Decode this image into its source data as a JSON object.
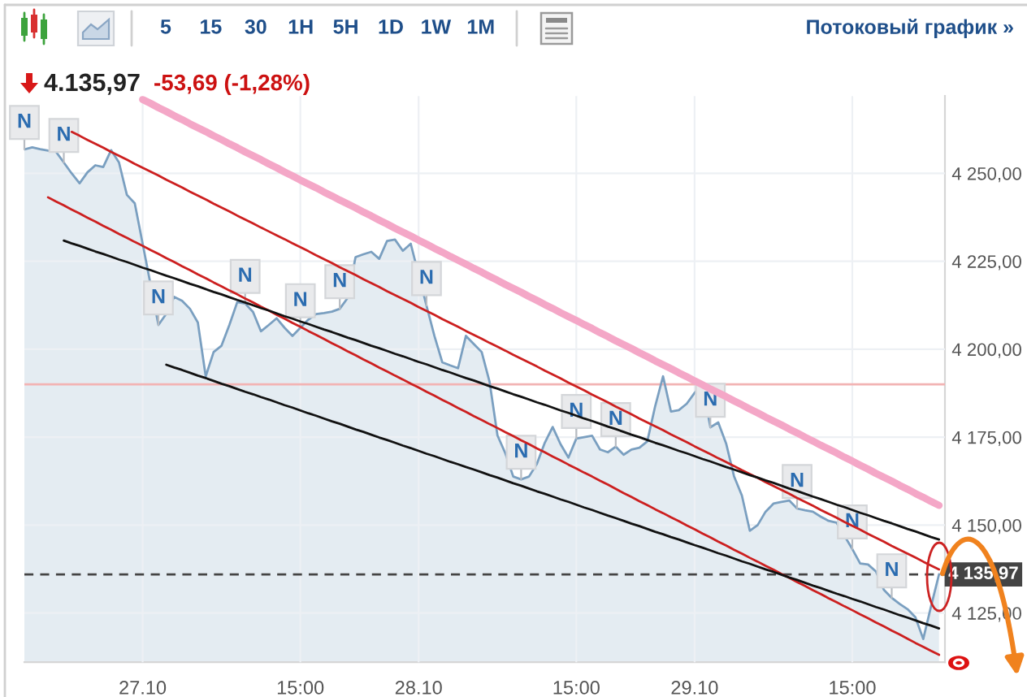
{
  "chart_data": {
    "type": "area",
    "title": "4.135,97",
    "subtitle": "-53,69 (-1,28%)",
    "categories": [
      null,
      null,
      null,
      null,
      null,
      null,
      null,
      null,
      null,
      null,
      null,
      null,
      null,
      null,
      null,
      "27.10",
      null,
      null,
      null,
      null,
      null,
      null,
      null,
      null,
      null,
      null,
      null,
      null,
      null,
      null,
      null,
      null,
      null,
      null,
      null,
      "15:00",
      null,
      null,
      null,
      null,
      null,
      null,
      null,
      null,
      null,
      null,
      null,
      null,
      null,
      null,
      "28.10",
      null,
      null,
      null,
      null,
      null,
      null,
      null,
      null,
      null,
      null,
      null,
      null,
      null,
      null,
      null,
      null,
      null,
      null,
      null,
      "15:00",
      null,
      null,
      null,
      null,
      null,
      null,
      null,
      null,
      null,
      null,
      null,
      null,
      null,
      null,
      "29.10",
      null,
      null,
      null,
      null,
      null,
      null,
      null,
      null,
      null,
      null,
      null,
      null,
      null,
      null,
      null,
      null,
      null,
      null,
      null,
      "15:00",
      null,
      null,
      null,
      null,
      null,
      null,
      null,
      null,
      null,
      null,
      null
    ],
    "series": [
      {
        "color": "#7a9fc0",
        "values": [
          4256.8,
          4257.4,
          4256.9,
          4256.5,
          4256.2,
          4253.1,
          4250.0,
          4247.2,
          4250.3,
          4252.3,
          4251.8,
          4256.6,
          4253.1,
          4243.9,
          4241.5,
          4230.0,
          null,
          4206.9,
          4210.1,
          4214.9,
          4213.8,
          4211.5,
          4207.6,
          4192.3,
          4199.2,
          4201.0,
          4206.9,
          4213.4,
          4213.0,
          4210.6,
          4205.1,
          4206.9,
          4208.8,
          4206.1,
          4203.8,
          4206.1,
          4208.4,
          4210.0,
          4210.3,
          4210.7,
          4211.5,
          4214.6,
          4226.2,
          4227.0,
          4227.7,
          4225.7,
          4230.8,
          4231.2,
          4228.0,
          4230.0,
          null,
          4212.4,
          4203.8,
          4196.3,
          4195.4,
          4194.6,
          4203.8,
          4201.5,
          4199.2,
          4190.7,
          4175.5,
          4170.4,
          4163.8,
          4163.0,
          4163.8,
          4167.4,
          4173.4,
          4177.9,
          4173.0,
          4169.2,
          4174.6,
          null,
          4175.4,
          4171.5,
          4170.7,
          4172.3,
          4170.0,
          4171.5,
          4172.0,
          4173.8,
          4183.8,
          4192.3,
          4182.3,
          4182.7,
          4184.5,
          4187.6,
          4190.0,
          4177.8,
          4179.2,
          4173.2,
          4163.9,
          4158.4,
          4148.4,
          4150.0,
          4153.8,
          4156.1,
          4156.6,
          4157.0,
          4154.7,
          4154.2,
          4153.8,
          4152.4,
          4151.2,
          4150.7,
          null,
          4143.2,
          4139.1,
          4138.8,
          4136.8,
          4131.6,
          4129.3,
          4127.6,
          4126.1,
          4123.8,
          4117.6,
          4127.0,
          4136.0
        ],
        "value_labels": [
          "N",
          null,
          null,
          null,
          null,
          "N",
          null,
          null,
          null,
          null,
          null,
          null,
          null,
          null,
          null,
          null,
          null,
          "N",
          null,
          null,
          null,
          null,
          null,
          null,
          null,
          null,
          null,
          null,
          "N",
          null,
          null,
          null,
          null,
          null,
          null,
          "N",
          null,
          null,
          null,
          null,
          "N",
          null,
          null,
          null,
          null,
          null,
          null,
          null,
          null,
          null,
          null,
          "N",
          null,
          null,
          null,
          null,
          null,
          null,
          null,
          null,
          null,
          null,
          null,
          "N",
          null,
          null,
          null,
          null,
          null,
          null,
          "N",
          null,
          null,
          null,
          null,
          "N",
          null,
          null,
          null,
          null,
          null,
          null,
          null,
          null,
          null,
          null,
          null,
          "N",
          null,
          null,
          null,
          null,
          null,
          null,
          null,
          null,
          null,
          null,
          "N",
          null,
          null,
          null,
          null,
          null,
          null,
          "N",
          null,
          null,
          null,
          null,
          "N",
          null,
          null,
          null,
          null,
          null,
          null
        ]
      },
      {
        "type": "line",
        "color": "#f4a7c7",
        "values": [
          null,
          null,
          null,
          null,
          null,
          null,
          null,
          null,
          null,
          null,
          null,
          null,
          null,
          null,
          null,
          4271.0,
          4269.9,
          4268.7,
          4267.6,
          4266.4,
          4265.3,
          4264.1,
          4263.0,
          4261.9,
          4260.7,
          4259.6,
          4258.4,
          4257.3,
          4256.1,
          4255.0,
          4253.9,
          4252.7,
          4251.6,
          4250.4,
          4249.3,
          4248.1,
          4247.0,
          4245.9,
          4244.7,
          4243.6,
          4242.4,
          4241.3,
          4240.2,
          4239.0,
          4237.9,
          4236.7,
          4235.6,
          4234.4,
          4233.3,
          4232.2,
          4231.0,
          4229.9,
          4228.7,
          4227.6,
          4226.4,
          4225.3,
          4224.2,
          4223.0,
          4221.9,
          4220.7,
          4219.6,
          4218.4,
          4217.3,
          4216.2,
          4215.0,
          4213.9,
          4212.7,
          4211.6,
          4210.4,
          4209.3,
          4208.2,
          4207.0,
          4205.9,
          4204.7,
          4203.6,
          4202.4,
          4201.3,
          4200.2,
          4199.0,
          4197.9,
          4196.7,
          4195.6,
          4194.5,
          4193.3,
          4192.2,
          4191.0,
          4189.9,
          4188.7,
          4187.6,
          4186.5,
          4185.3,
          4184.2,
          4183.0,
          4181.9,
          4180.7,
          4179.6,
          4178.5,
          4177.3,
          4176.2,
          4175.0,
          4173.9,
          4172.7,
          4171.6,
          4170.5,
          4169.3,
          4168.2,
          4167.0,
          4165.9,
          4164.7,
          4163.6,
          4162.5,
          4161.3,
          4160.2,
          4159.0,
          4157.9,
          4156.7,
          4155.6
        ]
      },
      {
        "type": "line",
        "color": "#cc1f1f",
        "values": [
          null,
          null,
          null,
          null,
          null,
          null,
          4261.8,
          4260.7,
          4259.5,
          4258.4,
          4257.3,
          4256.1,
          4255.0,
          4253.9,
          4252.7,
          4251.6,
          4250.5,
          4249.4,
          4248.2,
          4247.1,
          4246.0,
          4244.8,
          4243.7,
          4242.6,
          4241.4,
          4240.3,
          4239.2,
          4238.0,
          4236.9,
          4235.8,
          4234.6,
          4233.5,
          4232.4,
          4231.3,
          4230.1,
          4229.0,
          4227.9,
          4226.7,
          4225.6,
          4224.5,
          4223.3,
          4222.2,
          4221.1,
          4219.9,
          4218.8,
          4217.7,
          4216.5,
          4215.4,
          4214.3,
          4213.2,
          4212.0,
          4210.9,
          4209.8,
          4208.6,
          4207.5,
          4206.4,
          4205.2,
          4204.1,
          4203.0,
          4201.8,
          4200.7,
          4199.6,
          4198.4,
          4197.3,
          4196.2,
          4195.1,
          4193.9,
          4192.8,
          4191.7,
          4190.5,
          4189.4,
          4188.3,
          4187.1,
          4186.0,
          4184.9,
          4183.7,
          4182.6,
          4181.5,
          4180.3,
          4179.2,
          4178.1,
          4177.0,
          4175.8,
          4174.7,
          4173.6,
          4172.4,
          4171.3,
          4170.2,
          4169.0,
          4167.9,
          4166.8,
          4165.6,
          4164.5,
          4163.4,
          4162.2,
          4161.1,
          4160.0,
          4158.9,
          4157.7,
          4156.6,
          4155.5,
          4154.3,
          4153.2,
          4152.1,
          4150.9,
          4149.8,
          4148.7,
          4147.5,
          4146.4,
          4145.3,
          4144.1,
          4143.0,
          4141.9,
          4140.8,
          4139.6,
          4138.5,
          4137.4
        ]
      },
      {
        "type": "line",
        "color": "#cc1f1f",
        "values": [
          null,
          null,
          null,
          4243.2,
          4242.0,
          4240.9,
          4239.7,
          4238.6,
          4237.4,
          4236.3,
          4235.1,
          4234.0,
          4232.8,
          4231.7,
          4230.5,
          4229.4,
          4228.2,
          4227.1,
          4225.9,
          4224.8,
          4223.6,
          4222.5,
          4221.3,
          4220.2,
          4219.0,
          4217.9,
          4216.7,
          4215.6,
          4214.4,
          4213.3,
          4212.1,
          4211.0,
          4209.8,
          4208.7,
          4207.5,
          4206.4,
          4205.2,
          4204.1,
          4202.9,
          4201.7,
          4200.6,
          4199.4,
          4198.3,
          4197.1,
          4196.0,
          4194.8,
          4193.7,
          4192.5,
          4191.4,
          4190.2,
          4189.1,
          4187.9,
          4186.8,
          4185.6,
          4184.5,
          4183.3,
          4182.2,
          4181.0,
          4179.9,
          4178.7,
          4177.6,
          4176.4,
          4175.3,
          4174.1,
          4173.0,
          4171.8,
          4170.7,
          4169.5,
          4168.4,
          4167.2,
          4166.1,
          4164.9,
          4163.8,
          4162.6,
          4161.5,
          4160.3,
          4159.1,
          4158.0,
          4156.8,
          4155.7,
          4154.5,
          4153.4,
          4152.2,
          4151.1,
          4149.9,
          4148.8,
          4147.6,
          4146.5,
          4145.3,
          4144.2,
          4143.0,
          4141.9,
          4140.7,
          4139.6,
          4138.4,
          4137.3,
          4136.1,
          4135.0,
          4133.8,
          4132.7,
          4131.5,
          4130.4,
          4129.2,
          4128.1,
          4126.9,
          4125.8,
          4124.6,
          4123.5,
          4122.3,
          4121.2,
          4120.0,
          4118.9,
          4117.7,
          4116.5,
          4115.4,
          4114.2,
          4113.1
        ]
      },
      {
        "type": "line",
        "color": "#111111",
        "values": [
          null,
          null,
          null,
          null,
          null,
          4230.9,
          4230.1,
          4229.4,
          4228.6,
          4227.8,
          4227.1,
          4226.3,
          4225.5,
          4224.8,
          4224.0,
          4223.2,
          4222.5,
          4221.7,
          4220.9,
          4220.2,
          4219.4,
          4218.6,
          4217.9,
          4217.1,
          4216.3,
          4215.6,
          4214.8,
          4214.0,
          4213.3,
          4212.5,
          4211.7,
          4211.0,
          4210.2,
          4209.4,
          4208.7,
          4207.9,
          4207.2,
          4206.4,
          4205.6,
          4204.9,
          4204.1,
          4203.3,
          4202.6,
          4201.8,
          4201.0,
          4200.3,
          4199.5,
          4198.7,
          4198.0,
          4197.2,
          4196.4,
          4195.7,
          4194.9,
          4194.1,
          4193.4,
          4192.6,
          4191.8,
          4191.1,
          4190.3,
          4189.5,
          4188.8,
          4188.0,
          4187.2,
          4186.5,
          4185.7,
          4184.9,
          4184.2,
          4183.4,
          4182.6,
          4181.9,
          4181.1,
          4180.3,
          4179.6,
          4178.8,
          4178.0,
          4177.3,
          4176.5,
          4175.7,
          4175.0,
          4174.2,
          4173.4,
          4172.7,
          4171.9,
          4171.1,
          4170.4,
          4169.6,
          4168.8,
          4168.1,
          4167.3,
          4166.5,
          4165.8,
          4165.0,
          4164.2,
          4163.5,
          4162.7,
          4162.0,
          4161.2,
          4160.4,
          4159.7,
          4158.9,
          4158.1,
          4157.4,
          4156.6,
          4155.8,
          4155.1,
          4154.3,
          4153.5,
          4152.8,
          4152.0,
          4151.2,
          4150.5,
          4149.7,
          4148.9,
          4148.2,
          4147.4,
          4146.6,
          4145.9
        ]
      },
      {
        "type": "line",
        "color": "#111111",
        "values": [
          null,
          null,
          null,
          null,
          null,
          null,
          null,
          null,
          null,
          null,
          null,
          null,
          null,
          null,
          null,
          null,
          null,
          null,
          4195.6,
          4194.8,
          4194.1,
          4193.3,
          4192.5,
          4191.8,
          4191.0,
          4190.2,
          4189.5,
          4188.7,
          4187.9,
          4187.2,
          4186.4,
          4185.7,
          4184.9,
          4184.1,
          4183.4,
          4182.6,
          4181.8,
          4181.1,
          4180.3,
          4179.5,
          4178.8,
          4178.0,
          4177.2,
          4176.5,
          4175.7,
          4174.9,
          4174.2,
          4173.4,
          4172.6,
          4171.9,
          4171.1,
          4170.3,
          4169.6,
          4168.8,
          4168.0,
          4167.3,
          4166.5,
          4165.8,
          4165.0,
          4164.2,
          4163.5,
          4162.7,
          4161.9,
          4161.2,
          4160.4,
          4159.6,
          4158.9,
          4158.1,
          4157.3,
          4156.6,
          4155.8,
          4155.0,
          4154.3,
          4153.5,
          4152.7,
          4152.0,
          4151.2,
          4150.4,
          4149.7,
          4148.9,
          4148.1,
          4147.4,
          4146.6,
          4145.9,
          4145.1,
          4144.3,
          4143.6,
          4142.8,
          4142.0,
          4141.3,
          4140.5,
          4139.7,
          4139.0,
          4138.2,
          4137.4,
          4136.7,
          4135.9,
          4135.1,
          4134.4,
          4133.6,
          4132.8,
          4132.1,
          4131.3,
          4130.5,
          4129.8,
          4129.0,
          4128.3,
          4127.5,
          4126.7,
          4126.0,
          4125.2,
          4124.4,
          4123.7,
          4122.9,
          4122.1,
          4121.4,
          4120.6
        ]
      }
    ],
    "ylim": [
      4111,
      4272
    ],
    "yticks": [
      {
        "value": 4125,
        "label": "4 125,00"
      },
      {
        "value": 4150,
        "label": "4 150,00"
      },
      {
        "value": 4175,
        "label": "4 175,00"
      },
      {
        "value": 4200,
        "label": "4 200,00"
      },
      {
        "value": 4225,
        "label": "4 225,00"
      },
      {
        "value": 4250,
        "label": "4 250,00"
      }
    ],
    "grid": true,
    "ref_lines": [
      {
        "axis": "y",
        "value": 4190,
        "color": "#f2b3b3"
      },
      {
        "axis": "y",
        "value": 4135.97,
        "label": "4 135,97",
        "color": "#444444",
        "line_style": "dashed"
      }
    ],
    "annotations": [
      "5",
      "15",
      "30",
      "1H",
      "5H",
      "1D",
      "1W",
      "1M",
      "Потоковый график »"
    ]
  }
}
